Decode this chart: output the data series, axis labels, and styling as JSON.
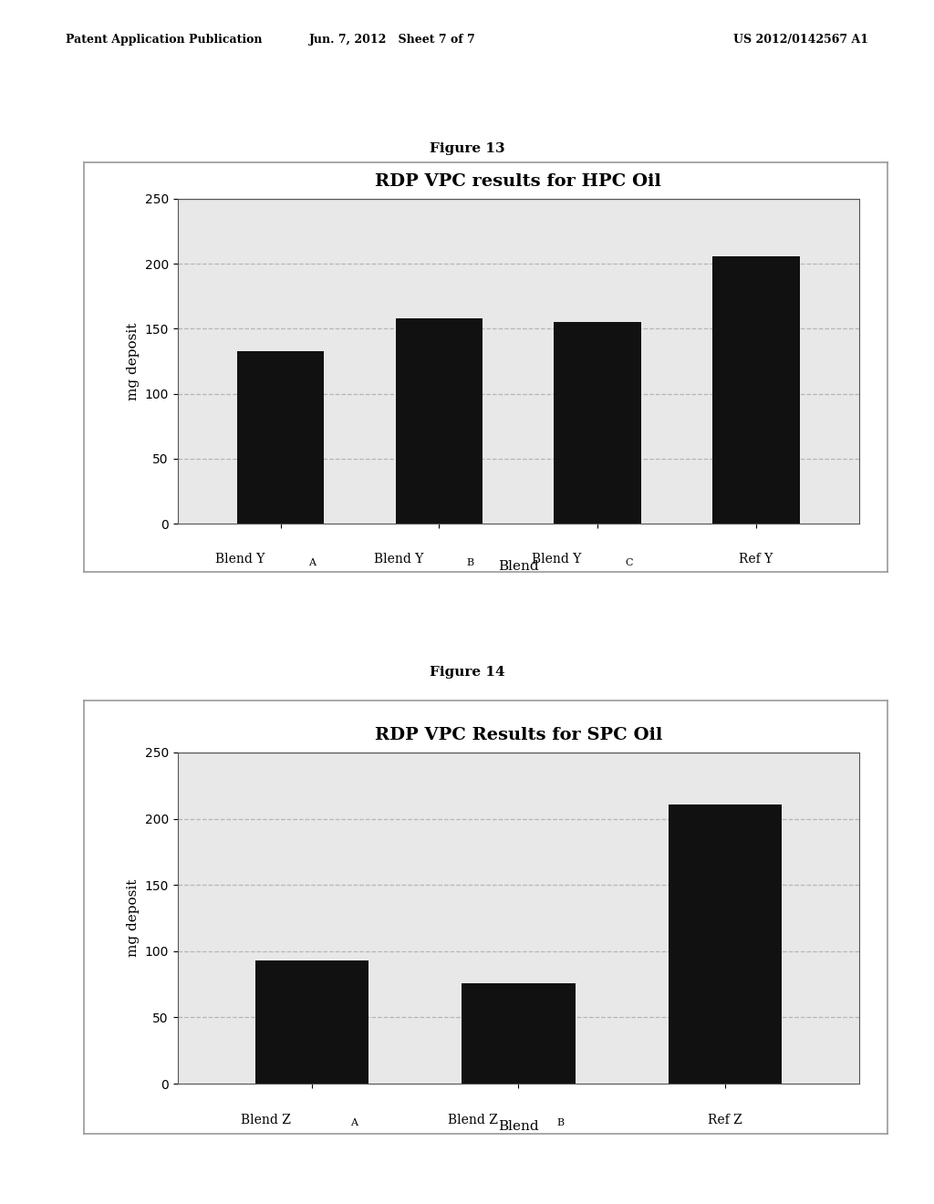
{
  "fig13": {
    "title": "RDP VPC results for HPC Oil",
    "values": [
      133,
      158,
      155,
      206
    ],
    "tick_labels_main": [
      "Blend Y",
      "Blend Y",
      "Blend Y",
      "Ref Y"
    ],
    "tick_labels_sub": [
      "A",
      "B",
      "C",
      ""
    ],
    "ylabel": "mg deposit",
    "xlabel": "Blend",
    "ylim": [
      0,
      250
    ],
    "yticks": [
      0,
      50,
      100,
      150,
      200,
      250
    ],
    "bar_color": "#111111",
    "bg_color": "#e8e8e8",
    "title_fontsize": 14,
    "axis_fontsize": 11,
    "tick_fontsize": 10,
    "sub_fontsize": 8
  },
  "fig14": {
    "title": "RDP VPC Results for SPC Oil",
    "values": [
      93,
      76,
      211
    ],
    "tick_labels_main": [
      "Blend Z",
      "Blend Z",
      "Ref Z"
    ],
    "tick_labels_sub": [
      "A",
      "B",
      ""
    ],
    "ylabel": "mg deposit",
    "xlabel": "Blend",
    "ylim": [
      0,
      250
    ],
    "yticks": [
      0,
      50,
      100,
      150,
      200,
      250
    ],
    "bar_color": "#111111",
    "bg_color": "#e8e8e8",
    "title_fontsize": 14,
    "axis_fontsize": 11,
    "tick_fontsize": 10,
    "sub_fontsize": 8
  },
  "header_left": "Patent Application Publication",
  "header_center": "Jun. 7, 2012   Sheet 7 of 7",
  "header_right": "US 2012/0142567 A1",
  "fig13_label": "Figure 13",
  "fig14_label": "Figure 14",
  "page_bg": "#ffffff",
  "box_bg": "#ffffff",
  "border_color": "#999999",
  "grid_color": "#aaaaaa",
  "header_fontsize": 9
}
